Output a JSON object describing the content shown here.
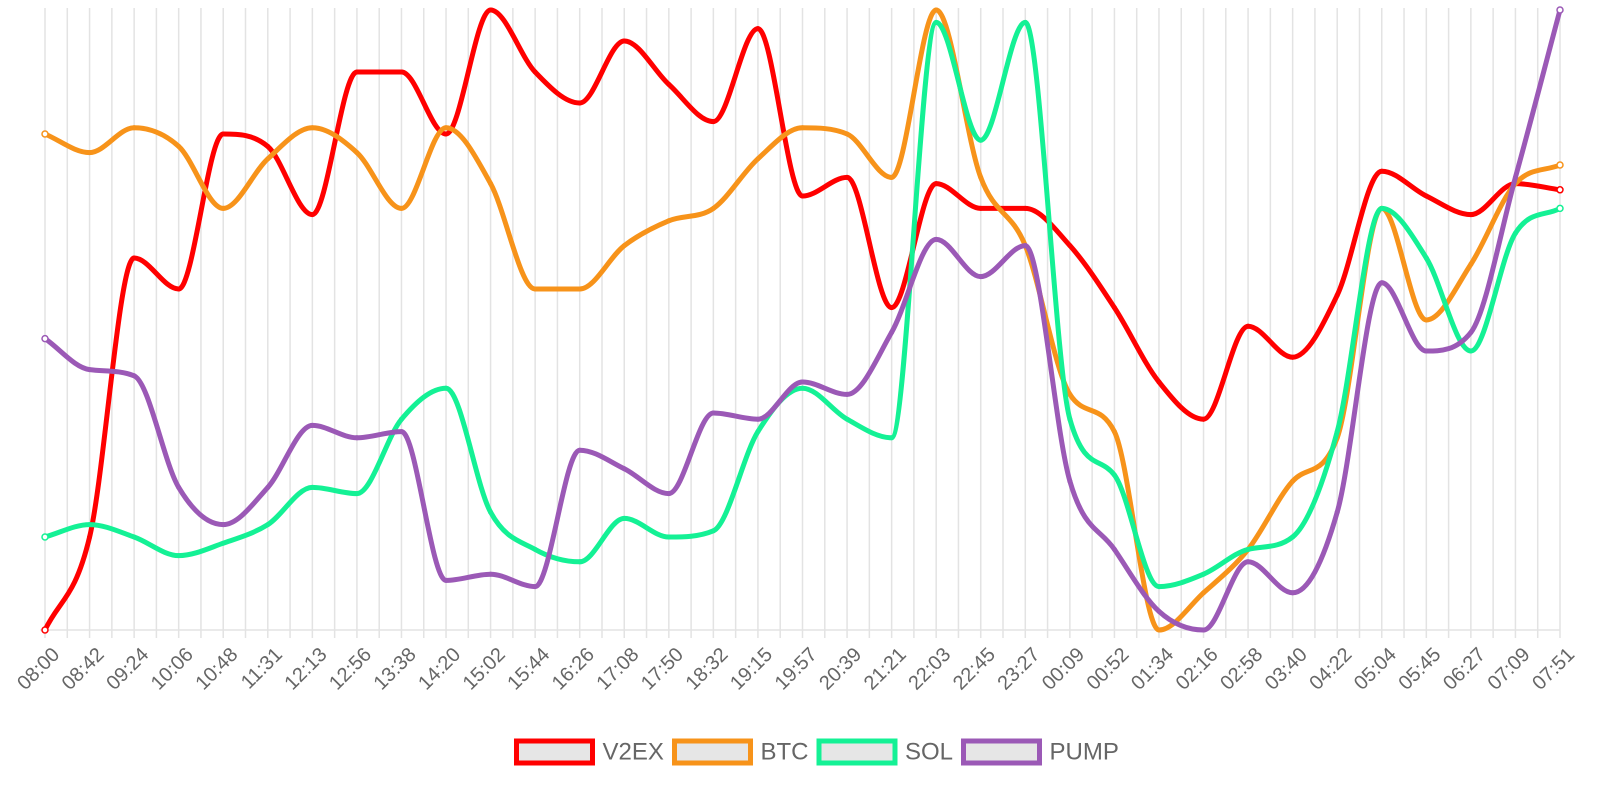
{
  "chart_data": {
    "type": "line",
    "title": "",
    "xlabel": "",
    "ylabel": "",
    "grid": true,
    "legend_position": "bottom",
    "ylim": [
      0,
      100
    ],
    "x": [
      "08:00",
      "08:42",
      "09:24",
      "10:06",
      "10:48",
      "11:31",
      "12:13",
      "12:56",
      "13:38",
      "14:20",
      "15:02",
      "15:44",
      "16:26",
      "17:08",
      "17:50",
      "18:32",
      "19:15",
      "19:57",
      "20:39",
      "21:21",
      "22:03",
      "22:45",
      "23:27",
      "00:09",
      "00:52",
      "01:34",
      "02:16",
      "02:58",
      "03:40",
      "04:22",
      "05:04",
      "05:45",
      "06:27",
      "07:09",
      "07:51"
    ],
    "series": [
      {
        "name": "V2EX",
        "color": "#ff0000",
        "values": [
          0,
          15,
          60,
          55,
          80,
          78,
          67,
          90,
          90,
          80,
          100,
          90,
          85,
          95,
          88,
          82,
          97,
          70,
          73,
          52,
          72,
          68,
          68,
          62,
          52,
          40,
          34,
          49,
          44,
          54,
          74,
          70,
          67,
          72,
          71
        ]
      },
      {
        "name": "BTC",
        "color": "#f7931a",
        "values": [
          80,
          77,
          81,
          78,
          68,
          76,
          81,
          77,
          68,
          81,
          72,
          55,
          55,
          62,
          66,
          68,
          76,
          81,
          80,
          73,
          100,
          73,
          62,
          38,
          32,
          0,
          6,
          13,
          24,
          31,
          68,
          50,
          59,
          72,
          75
        ]
      },
      {
        "name": "SOL",
        "color": "#14f195",
        "values": [
          15,
          17,
          15,
          12,
          14,
          17,
          23,
          22,
          34,
          39,
          19,
          13,
          11,
          18,
          15,
          16,
          32,
          39,
          34,
          31,
          98,
          79,
          98,
          34,
          25,
          7,
          9,
          13,
          15,
          32,
          68,
          60,
          45,
          64,
          68
        ]
      },
      {
        "name": "PUMP",
        "color": "#9b59b6",
        "values": [
          47,
          42,
          41,
          23,
          17,
          23,
          33,
          31,
          32,
          8,
          9,
          7,
          29,
          26,
          22,
          35,
          34,
          40,
          38,
          48,
          63,
          57,
          62,
          24,
          13,
          3,
          0,
          11,
          6,
          19,
          56,
          45,
          48,
          73,
          100
        ]
      }
    ]
  }
}
